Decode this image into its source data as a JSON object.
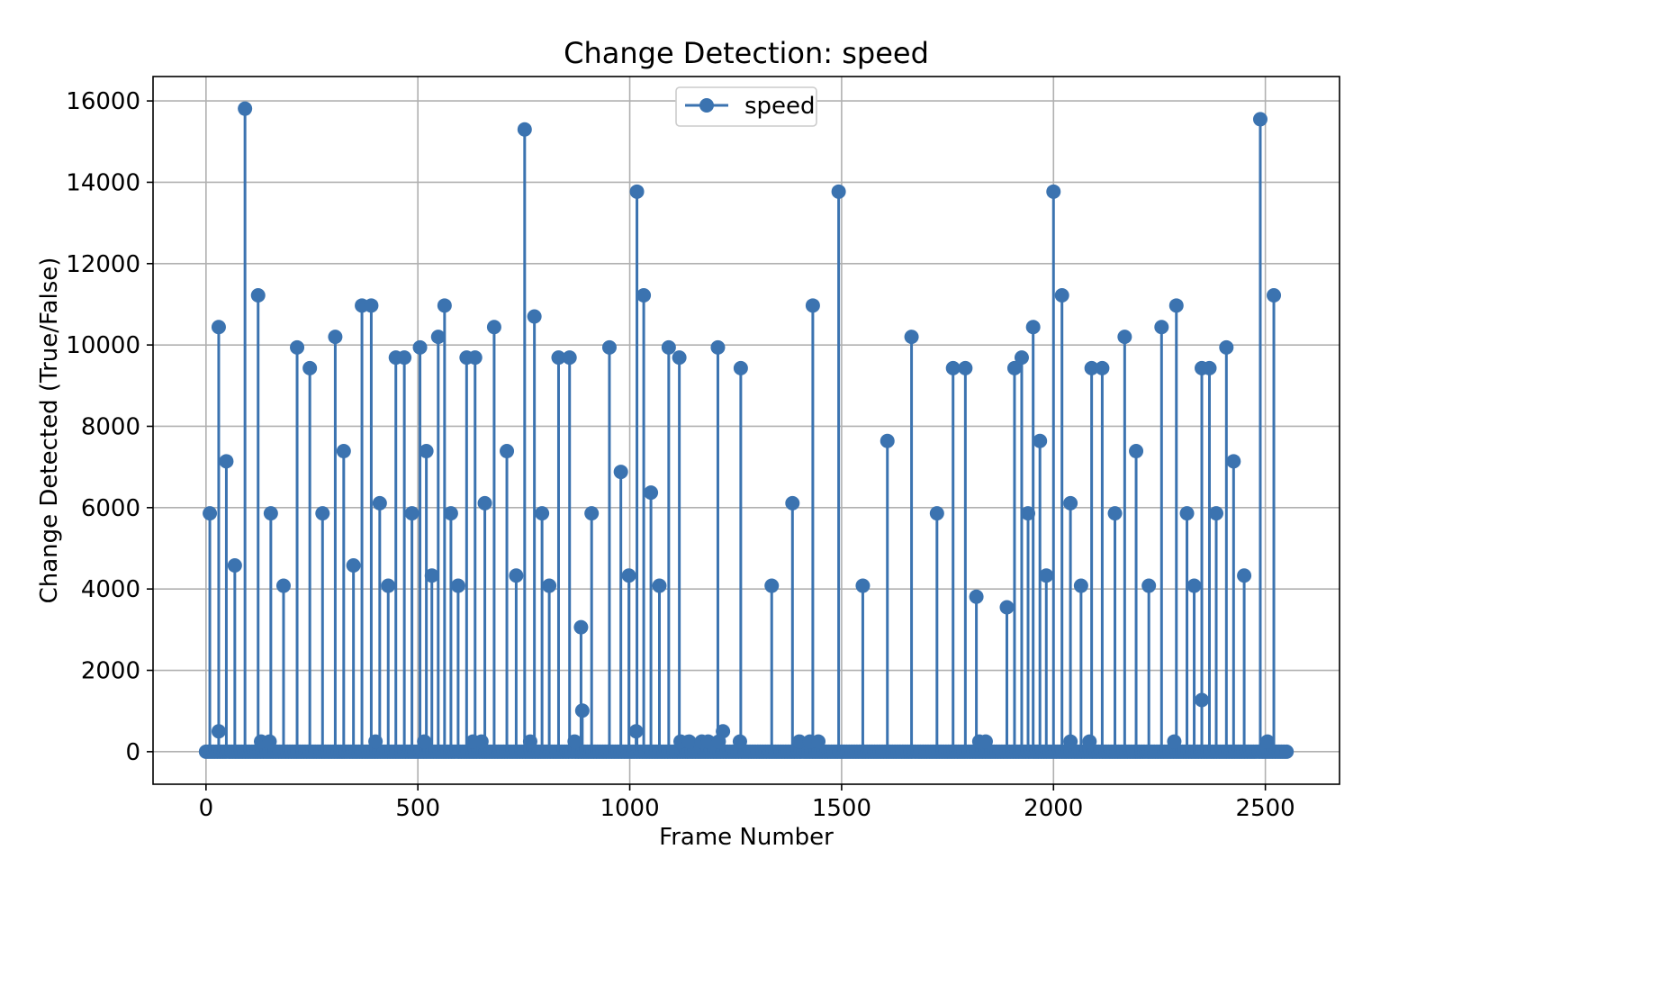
{
  "chart_data": {
    "type": "stem",
    "title": "Change Detection: speed",
    "xlabel": "Frame Number",
    "ylabel": "Change Detected (True/False)",
    "xlim": [
      -125,
      2675
    ],
    "ylim": [
      -800,
      16600
    ],
    "xticks": [
      0,
      500,
      1000,
      1500,
      2000,
      2500
    ],
    "yticks": [
      0,
      2000,
      4000,
      6000,
      8000,
      10000,
      12000,
      14000,
      16000
    ],
    "grid": true,
    "legend_position": "upper center",
    "baseline": {
      "x_start": 0,
      "x_end": 2550,
      "y": 0
    },
    "series": [
      {
        "name": "speed",
        "color": "#3b73b0",
        "points": [
          [
            9,
            5860
          ],
          [
            30,
            10440
          ],
          [
            48,
            7140
          ],
          [
            68,
            4580
          ],
          [
            92,
            15810
          ],
          [
            123,
            11220
          ],
          [
            153,
            5860
          ],
          [
            183,
            4080
          ],
          [
            215,
            9940
          ],
          [
            245,
            9430
          ],
          [
            275,
            5860
          ],
          [
            305,
            10200
          ],
          [
            325,
            7390
          ],
          [
            348,
            4580
          ],
          [
            368,
            10970
          ],
          [
            390,
            10970
          ],
          [
            410,
            6110
          ],
          [
            430,
            4080
          ],
          [
            448,
            9690
          ],
          [
            468,
            9690
          ],
          [
            486,
            5860
          ],
          [
            505,
            9940
          ],
          [
            520,
            7390
          ],
          [
            533,
            4330
          ],
          [
            548,
            10200
          ],
          [
            563,
            10970
          ],
          [
            578,
            5860
          ],
          [
            595,
            4080
          ],
          [
            615,
            9690
          ],
          [
            635,
            9690
          ],
          [
            658,
            6110
          ],
          [
            680,
            10440
          ],
          [
            710,
            7390
          ],
          [
            732,
            4330
          ],
          [
            752,
            15300
          ],
          [
            775,
            10700
          ],
          [
            793,
            5860
          ],
          [
            810,
            4080
          ],
          [
            832,
            9690
          ],
          [
            858,
            9690
          ],
          [
            885,
            3060
          ],
          [
            888,
            1010
          ],
          [
            910,
            5860
          ],
          [
            952,
            9940
          ],
          [
            979,
            6880
          ],
          [
            998,
            4330
          ],
          [
            1017,
            13770
          ],
          [
            1033,
            11220
          ],
          [
            1050,
            6370
          ],
          [
            1070,
            4080
          ],
          [
            1092,
            9940
          ],
          [
            1117,
            9690
          ],
          [
            1208,
            9940
          ],
          [
            1262,
            9430
          ],
          [
            1335,
            4080
          ],
          [
            1384,
            6110
          ],
          [
            1432,
            10970
          ],
          [
            1493,
            13770
          ],
          [
            1550,
            4080
          ],
          [
            1608,
            7640
          ],
          [
            1665,
            10200
          ],
          [
            1725,
            5860
          ],
          [
            1763,
            9430
          ],
          [
            1792,
            9430
          ],
          [
            1818,
            3810
          ],
          [
            1890,
            3550
          ],
          [
            1908,
            9430
          ],
          [
            1925,
            9690
          ],
          [
            1940,
            5860
          ],
          [
            1952,
            10440
          ],
          [
            1968,
            7640
          ],
          [
            1983,
            4330
          ],
          [
            2000,
            13770
          ],
          [
            2020,
            11220
          ],
          [
            2040,
            6110
          ],
          [
            2065,
            4080
          ],
          [
            2090,
            9430
          ],
          [
            2115,
            9430
          ],
          [
            2145,
            5860
          ],
          [
            2168,
            10200
          ],
          [
            2195,
            7390
          ],
          [
            2225,
            4080
          ],
          [
            2255,
            10440
          ],
          [
            2290,
            10970
          ],
          [
            2315,
            5860
          ],
          [
            2332,
            4080
          ],
          [
            2350,
            9430
          ],
          [
            2368,
            9430
          ],
          [
            2384,
            5860
          ],
          [
            2408,
            9940
          ],
          [
            2425,
            7140
          ],
          [
            2350,
            1270
          ],
          [
            2450,
            4330
          ],
          [
            2488,
            15550
          ],
          [
            2520,
            11220
          ],
          [
            30,
            500
          ],
          [
            1015,
            500
          ],
          [
            1220,
            500
          ],
          [
            130,
            250
          ],
          [
            150,
            250
          ],
          [
            400,
            250
          ],
          [
            515,
            250
          ],
          [
            630,
            250
          ],
          [
            650,
            250
          ],
          [
            765,
            250
          ],
          [
            870,
            250
          ],
          [
            1120,
            250
          ],
          [
            1140,
            250
          ],
          [
            1170,
            250
          ],
          [
            1185,
            250
          ],
          [
            1210,
            250
          ],
          [
            1260,
            250
          ],
          [
            1400,
            250
          ],
          [
            1425,
            250
          ],
          [
            1445,
            250
          ],
          [
            1825,
            250
          ],
          [
            1840,
            250
          ],
          [
            2040,
            250
          ],
          [
            2085,
            250
          ],
          [
            2285,
            250
          ],
          [
            2505,
            250
          ]
        ]
      }
    ]
  }
}
